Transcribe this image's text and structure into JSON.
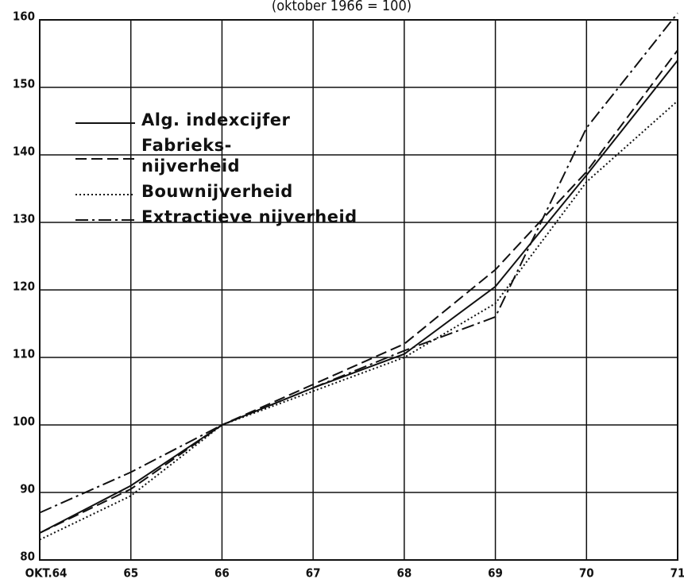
{
  "chart_data": {
    "type": "line",
    "subtitle": "(oktober 1966 = 100)",
    "categories": [
      "OKT.64",
      "65",
      "66",
      "67",
      "68",
      "69",
      "70",
      "71"
    ],
    "series": [
      {
        "name": "Alg. indexcijfer",
        "color": "#111111",
        "dash": "solid",
        "values": [
          84,
          91,
          100,
          105.5,
          110.5,
          120.5,
          137,
          154
        ]
      },
      {
        "name": "Fabrieks-\nnijverheid",
        "color": "#111111",
        "dash": "dashed",
        "values": [
          84,
          90.5,
          100,
          106,
          112,
          123,
          137.5,
          155.5
        ]
      },
      {
        "name": "Bouwnijverheid",
        "color": "#111111",
        "dash": "dotted",
        "values": [
          83,
          89.5,
          100,
          105,
          110,
          118,
          136,
          148
        ]
      },
      {
        "name": "Extractieve nijverheid",
        "color": "#111111",
        "dash": "dashdot",
        "values": [
          87,
          93,
          100,
          105.5,
          111,
          116,
          144,
          161
        ]
      }
    ],
    "ylim": [
      80,
      160
    ],
    "yticks": [
      80,
      90,
      100,
      110,
      120,
      130,
      140,
      150,
      160
    ],
    "grid": true
  }
}
